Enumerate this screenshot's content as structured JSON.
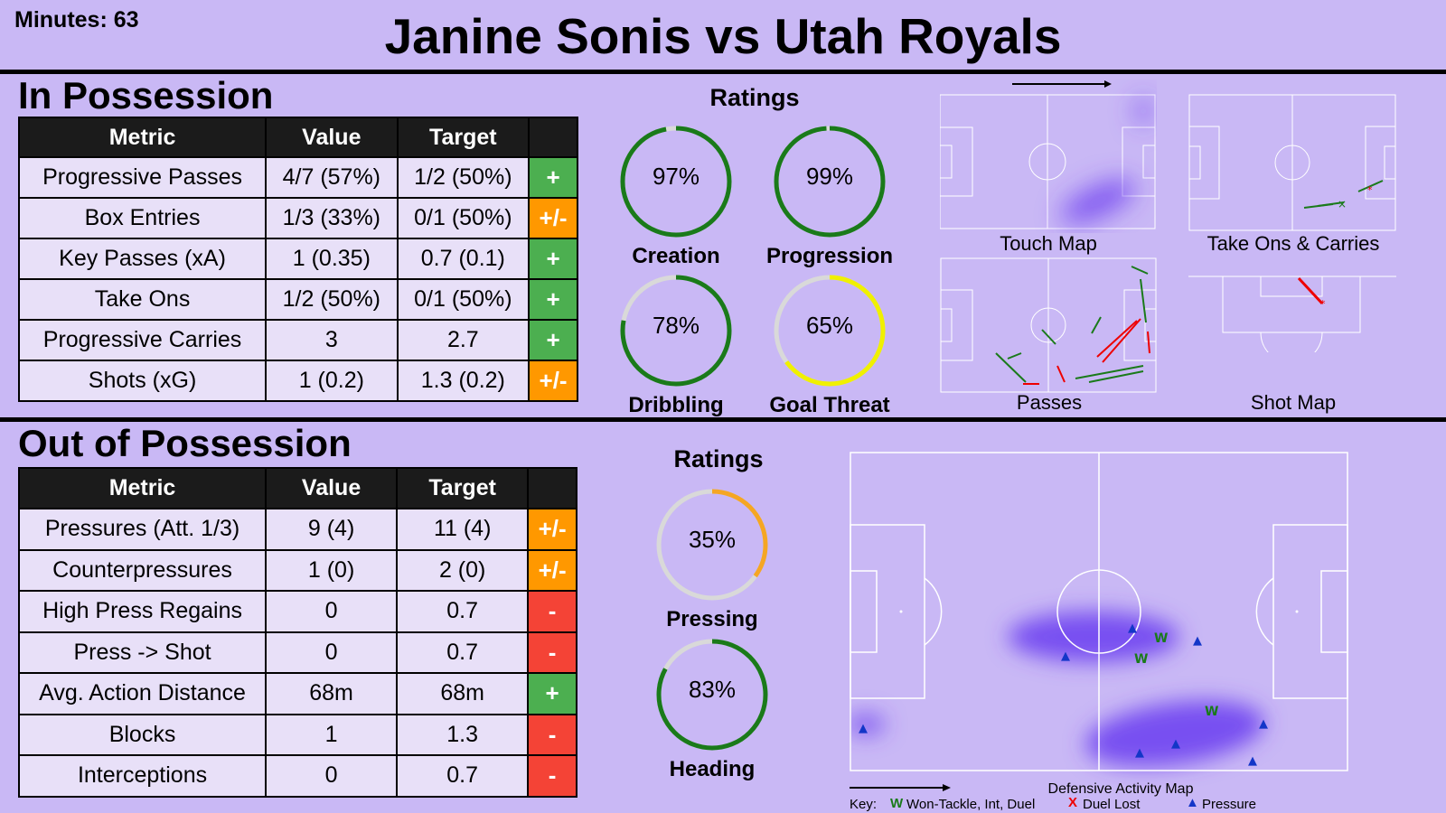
{
  "header": {
    "minutes": "Minutes: 63",
    "title": "Janine Sonis vs Utah Royals"
  },
  "colors": {
    "background": "#c9b8f5",
    "positive": "#4caf50",
    "neutral": "#ff9800",
    "negative": "#f44336",
    "ring_green": "#1a7a1a",
    "ring_orange": "#f5a623",
    "ring_yellow": "#f0f000",
    "ring_track": "#d9d9d9",
    "heat": "#7b4ff0"
  },
  "in_possession": {
    "title": "In Possession",
    "columns": [
      "Metric",
      "Value",
      "Target",
      ""
    ],
    "rows": [
      {
        "metric": "Progressive Passes",
        "value": "4/7 (57%)",
        "target": "1/2 (50%)",
        "indicator": "+",
        "status": "positive"
      },
      {
        "metric": "Box Entries",
        "value": "1/3 (33%)",
        "target": "0/1 (50%)",
        "indicator": "+/-",
        "status": "neutral"
      },
      {
        "metric": "Key Passes (xA)",
        "value": "1 (0.35)",
        "target": "0.7 (0.1)",
        "indicator": "+",
        "status": "positive"
      },
      {
        "metric": "Take Ons",
        "value": "1/2 (50%)",
        "target": "0/1 (50%)",
        "indicator": "+",
        "status": "positive"
      },
      {
        "metric": "Progressive Carries",
        "value": "3",
        "target": "2.7",
        "indicator": "+",
        "status": "positive"
      },
      {
        "metric": "Shots (xG)",
        "value": "1 (0.2)",
        "target": "1.3 (0.2)",
        "indicator": "+/-",
        "status": "neutral"
      }
    ],
    "ratings_title": "Ratings",
    "ratings": [
      {
        "label": "Creation",
        "value": "97%",
        "fraction": 0.97,
        "color": "ring_green"
      },
      {
        "label": "Progression",
        "value": "99%",
        "fraction": 0.99,
        "color": "ring_green"
      },
      {
        "label": "Dribbling",
        "value": "78%",
        "fraction": 0.78,
        "color": "ring_green"
      },
      {
        "label": "Goal Threat",
        "value": "65%",
        "fraction": 0.65,
        "color": "ring_yellow"
      }
    ],
    "maps": {
      "touch": "Touch Map",
      "take_ons": "Take Ons & Carries",
      "passes": "Passes",
      "shots": "Shot Map"
    }
  },
  "out_of_possession": {
    "title": "Out of Possession",
    "columns": [
      "Metric",
      "Value",
      "Target",
      ""
    ],
    "rows": [
      {
        "metric": "Pressures (Att. 1/3)",
        "value": "9 (4)",
        "target": "11 (4)",
        "indicator": "+/-",
        "status": "neutral"
      },
      {
        "metric": "Counterpressures",
        "value": "1 (0)",
        "target": "2 (0)",
        "indicator": "+/-",
        "status": "neutral"
      },
      {
        "metric": "High Press Regains",
        "value": "0",
        "target": "0.7",
        "indicator": "-",
        "status": "negative"
      },
      {
        "metric": "Press -> Shot",
        "value": "0",
        "target": "0.7",
        "indicator": "-",
        "status": "negative"
      },
      {
        "metric": "Avg. Action Distance",
        "value": "68m",
        "target": "68m",
        "indicator": "+",
        "status": "positive"
      },
      {
        "metric": "Blocks",
        "value": "1",
        "target": "1.3",
        "indicator": "-",
        "status": "negative"
      },
      {
        "metric": "Interceptions",
        "value": "0",
        "target": "0.7",
        "indicator": "-",
        "status": "negative"
      }
    ],
    "ratings_title": "Ratings",
    "ratings": [
      {
        "label": "Pressing",
        "value": "35%",
        "fraction": 0.35,
        "color": "ring_orange"
      },
      {
        "label": "Heading",
        "value": "83%",
        "fraction": 0.83,
        "color": "ring_green"
      }
    ],
    "defensive_map": {
      "title": "Defensive Activity Map",
      "key_label": "Key:",
      "key_won": "Won-Tackle, Int, Duel",
      "key_lost": "Duel Lost",
      "key_pressure": "Pressure",
      "won_symbol": "W",
      "lost_symbol": "X",
      "pressure_symbol": "▲"
    }
  }
}
